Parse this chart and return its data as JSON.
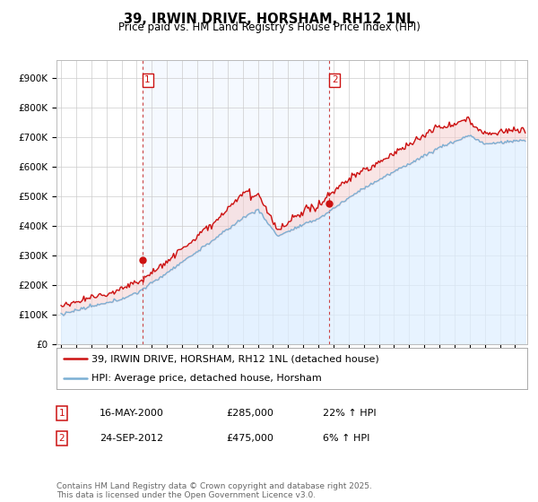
{
  "title": "39, IRWIN DRIVE, HORSHAM, RH12 1NL",
  "subtitle": "Price paid vs. HM Land Registry's House Price Index (HPI)",
  "ylabel_ticks": [
    "£0",
    "£100K",
    "£200K",
    "£300K",
    "£400K",
    "£500K",
    "£600K",
    "£700K",
    "£800K",
    "£900K"
  ],
  "ytick_values": [
    0,
    100000,
    200000,
    300000,
    400000,
    500000,
    600000,
    700000,
    800000,
    900000
  ],
  "ylim": [
    0,
    960000
  ],
  "xlim_start": 1994.7,
  "xlim_end": 2025.8,
  "hpi_color": "#7bafd4",
  "hpi_fill_color": "#ddeeff",
  "price_color": "#cc1111",
  "background_color": "#ffffff",
  "grid_color": "#cccccc",
  "marker1_x": 2000.37,
  "marker1_y": 285000,
  "marker1_label": "1",
  "marker2_x": 2012.73,
  "marker2_y": 475000,
  "marker2_label": "2",
  "vline1_x": 2000.37,
  "vline2_x": 2012.73,
  "legend_entries": [
    "39, IRWIN DRIVE, HORSHAM, RH12 1NL (detached house)",
    "HPI: Average price, detached house, Horsham"
  ],
  "table_rows": [
    {
      "num": "1",
      "date": "16-MAY-2000",
      "price": "£285,000",
      "hpi": "22% ↑ HPI"
    },
    {
      "num": "2",
      "date": "24-SEP-2012",
      "price": "£475,000",
      "hpi": "6% ↑ HPI"
    }
  ],
  "footer": "Contains HM Land Registry data © Crown copyright and database right 2025.\nThis data is licensed under the Open Government Licence v3.0.",
  "title_fontsize": 10.5,
  "subtitle_fontsize": 8.5,
  "tick_fontsize": 7.5,
  "legend_fontsize": 8,
  "table_fontsize": 8,
  "footer_fontsize": 6.5
}
